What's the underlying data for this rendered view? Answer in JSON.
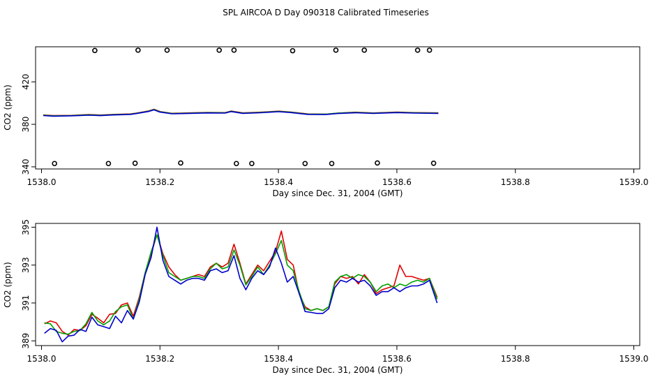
{
  "title": "SPL AIRCOA D  Day 090318  Calibrated Timeseries",
  "colors": {
    "red": "#e00000",
    "green": "#00a000",
    "blue": "#0000cc",
    "axis": "#000000"
  },
  "chart_data": [
    {
      "type": "line",
      "name": "upper-panel",
      "xlabel": "Day since Dec. 31, 2004 (GMT)",
      "ylabel": "CO2 (ppm)",
      "xlim": [
        1537.99,
        1539.01
      ],
      "ylim": [
        338,
        453
      ],
      "xticks": [
        {
          "v": 1538.0,
          "label": "1538.0"
        },
        {
          "v": 1538.2,
          "label": "1538.2"
        },
        {
          "v": 1538.4,
          "label": "1538.4"
        },
        {
          "v": 1538.6,
          "label": "1538.6"
        },
        {
          "v": 1538.8,
          "label": "1538.8"
        },
        {
          "v": 1539.0,
          "label": "1539.0"
        }
      ],
      "yticks": [
        {
          "v": 340,
          "label": "340"
        },
        {
          "v": 380,
          "label": "380"
        },
        {
          "v": 420,
          "label": "420"
        }
      ],
      "series": [
        {
          "name": "red",
          "color": "#e00000",
          "x": [
            1538.003,
            1538.02,
            1538.05,
            1538.08,
            1538.1,
            1538.12,
            1538.15,
            1538.16,
            1538.18,
            1538.19,
            1538.2,
            1538.22,
            1538.25,
            1538.28,
            1538.31,
            1538.32,
            1538.34,
            1538.37,
            1538.4,
            1538.42,
            1538.45,
            1538.48,
            1538.5,
            1538.53,
            1538.56,
            1538.6,
            1538.63,
            1538.67
          ],
          "y": [
            388.8,
            388.2,
            388.4,
            389.2,
            388.7,
            389.3,
            389.8,
            390.6,
            392.5,
            394.2,
            392.0,
            390.4,
            390.8,
            391.2,
            391.0,
            392.5,
            390.8,
            391.4,
            392.4,
            391.6,
            389.8,
            389.6,
            390.6,
            391.4,
            390.7,
            391.5,
            391.0,
            390.8
          ]
        },
        {
          "name": "green",
          "color": "#00a000",
          "x": [
            1538.003,
            1538.02,
            1538.05,
            1538.08,
            1538.1,
            1538.12,
            1538.15,
            1538.16,
            1538.18,
            1538.19,
            1538.2,
            1538.22,
            1538.25,
            1538.28,
            1538.31,
            1538.32,
            1538.34,
            1538.37,
            1538.4,
            1538.42,
            1538.45,
            1538.48,
            1538.5,
            1538.53,
            1538.56,
            1538.6,
            1538.63,
            1538.67
          ],
          "y": [
            388.6,
            388.0,
            388.3,
            389.0,
            388.5,
            389.1,
            389.6,
            390.4,
            392.3,
            393.9,
            391.8,
            390.2,
            390.6,
            391.0,
            390.9,
            392.3,
            390.6,
            391.2,
            392.2,
            391.4,
            389.6,
            389.5,
            390.5,
            391.2,
            390.6,
            391.3,
            390.9,
            390.6
          ]
        },
        {
          "name": "blue",
          "color": "#0000cc",
          "x": [
            1538.003,
            1538.02,
            1538.05,
            1538.08,
            1538.1,
            1538.12,
            1538.15,
            1538.16,
            1538.18,
            1538.19,
            1538.2,
            1538.22,
            1538.25,
            1538.28,
            1538.31,
            1538.32,
            1538.34,
            1538.37,
            1538.4,
            1538.42,
            1538.45,
            1538.48,
            1538.5,
            1538.53,
            1538.56,
            1538.6,
            1538.63,
            1538.67
          ],
          "y": [
            388.3,
            387.7,
            388.0,
            388.6,
            388.2,
            388.8,
            389.3,
            390.1,
            392.0,
            393.6,
            391.5,
            389.9,
            390.3,
            390.7,
            390.6,
            392.0,
            390.3,
            390.9,
            391.9,
            391.1,
            389.3,
            389.2,
            390.2,
            390.9,
            390.3,
            391.0,
            390.6,
            390.3
          ]
        }
      ],
      "markers": {
        "style": "open-circle",
        "x": [
          1538.09,
          1538.163,
          1538.212,
          1538.3,
          1538.325,
          1538.424,
          1538.497,
          1538.545,
          1538.635,
          1538.655,
          1538.022,
          1538.113,
          1538.158,
          1538.235,
          1538.329,
          1538.355,
          1538.445,
          1538.49,
          1538.567,
          1538.662
        ],
        "y": [
          449.5,
          449.8,
          449.8,
          449.8,
          449.8,
          449.3,
          449.8,
          449.8,
          449.8,
          449.8,
          343.1,
          343.1,
          343.4,
          343.6,
          343.1,
          343.1,
          343.1,
          343.1,
          343.6,
          343.4
        ]
      }
    },
    {
      "type": "line",
      "name": "lower-panel",
      "xlabel": "Day since Dec. 31, 2004 (GMT)",
      "ylabel": "CO2 (ppm)",
      "xlim": [
        1537.99,
        1539.01
      ],
      "ylim": [
        388.75,
        395.2
      ],
      "xticks": [
        {
          "v": 1538.0,
          "label": "1538.0"
        },
        {
          "v": 1538.2,
          "label": "1538.2"
        },
        {
          "v": 1538.4,
          "label": "1538.4"
        },
        {
          "v": 1538.6,
          "label": "1538.6"
        },
        {
          "v": 1538.8,
          "label": "1538.8"
        },
        {
          "v": 1539.0,
          "label": "1539.0"
        }
      ],
      "yticks": [
        {
          "v": 389,
          "label": "389"
        },
        {
          "v": 391,
          "label": "391"
        },
        {
          "v": 393,
          "label": "393"
        },
        {
          "v": 395,
          "label": "395"
        }
      ],
      "series": [
        {
          "name": "red",
          "color": "#e00000",
          "x": [
            1538.005,
            1538.015,
            1538.025,
            1538.035,
            1538.045,
            1538.055,
            1538.065,
            1538.075,
            1538.085,
            1538.095,
            1538.105,
            1538.115,
            1538.125,
            1538.135,
            1538.145,
            1538.155,
            1538.165,
            1538.175,
            1538.185,
            1538.195,
            1538.205,
            1538.215,
            1538.225,
            1538.235,
            1538.245,
            1538.255,
            1538.265,
            1538.275,
            1538.285,
            1538.295,
            1538.305,
            1538.315,
            1538.325,
            1538.335,
            1538.345,
            1538.355,
            1538.365,
            1538.375,
            1538.385,
            1538.395,
            1538.405,
            1538.415,
            1538.425,
            1538.435,
            1538.445,
            1538.455,
            1538.465,
            1538.475,
            1538.485,
            1538.495,
            1538.505,
            1538.515,
            1538.525,
            1538.535,
            1538.545,
            1538.555,
            1538.565,
            1538.575,
            1538.585,
            1538.595,
            1538.605,
            1538.615,
            1538.625,
            1538.635,
            1538.645,
            1538.655,
            1538.668
          ],
          "y": [
            389.9,
            390.05,
            389.95,
            389.5,
            389.3,
            389.6,
            389.55,
            389.8,
            390.4,
            390.2,
            389.95,
            390.4,
            390.45,
            390.9,
            391.0,
            390.3,
            391.3,
            392.6,
            393.6,
            394.6,
            393.6,
            392.9,
            392.5,
            392.2,
            392.3,
            392.4,
            392.5,
            392.4,
            392.9,
            393.1,
            392.9,
            393.1,
            394.1,
            393.1,
            392.0,
            392.5,
            393.0,
            392.7,
            393.2,
            393.7,
            394.8,
            393.3,
            393.0,
            391.5,
            390.8,
            390.6,
            390.7,
            390.6,
            390.8,
            392.0,
            392.4,
            392.3,
            392.4,
            392.0,
            392.5,
            392.1,
            391.5,
            391.7,
            391.8,
            391.9,
            393.0,
            392.4,
            392.4,
            392.3,
            392.2,
            392.3,
            391.3
          ]
        },
        {
          "name": "green",
          "color": "#00a000",
          "x": [
            1538.005,
            1538.015,
            1538.025,
            1538.035,
            1538.045,
            1538.055,
            1538.065,
            1538.075,
            1538.085,
            1538.095,
            1538.105,
            1538.115,
            1538.125,
            1538.135,
            1538.145,
            1538.155,
            1538.165,
            1538.175,
            1538.185,
            1538.195,
            1538.205,
            1538.215,
            1538.225,
            1538.235,
            1538.245,
            1538.255,
            1538.265,
            1538.275,
            1538.285,
            1538.295,
            1538.305,
            1538.315,
            1538.325,
            1538.335,
            1538.345,
            1538.355,
            1538.365,
            1538.375,
            1538.385,
            1538.395,
            1538.405,
            1538.415,
            1538.425,
            1538.435,
            1538.445,
            1538.455,
            1538.465,
            1538.475,
            1538.485,
            1538.495,
            1538.505,
            1538.515,
            1538.525,
            1538.535,
            1538.545,
            1538.555,
            1538.565,
            1538.575,
            1538.585,
            1538.595,
            1538.605,
            1538.615,
            1538.625,
            1538.635,
            1538.645,
            1538.655,
            1538.668
          ],
          "y": [
            389.95,
            389.9,
            389.5,
            389.4,
            389.35,
            389.5,
            389.55,
            389.9,
            390.5,
            390.05,
            389.85,
            390.05,
            390.55,
            390.8,
            390.9,
            390.15,
            391.2,
            392.6,
            393.7,
            394.6,
            393.5,
            392.6,
            392.4,
            392.2,
            392.3,
            392.4,
            392.4,
            392.3,
            392.8,
            393.1,
            392.8,
            392.9,
            393.8,
            393.0,
            391.95,
            392.4,
            392.9,
            392.5,
            393.0,
            393.6,
            394.3,
            393.0,
            392.7,
            391.6,
            390.7,
            390.6,
            390.7,
            390.6,
            390.8,
            392.1,
            392.4,
            392.5,
            392.3,
            392.5,
            392.4,
            392.1,
            391.6,
            391.9,
            392.0,
            391.8,
            392.0,
            391.9,
            392.1,
            392.2,
            392.1,
            392.3,
            391.2
          ]
        },
        {
          "name": "blue",
          "color": "#0000cc",
          "x": [
            1538.005,
            1538.015,
            1538.025,
            1538.035,
            1538.045,
            1538.055,
            1538.065,
            1538.075,
            1538.085,
            1538.095,
            1538.105,
            1538.115,
            1538.125,
            1538.135,
            1538.145,
            1538.155,
            1538.165,
            1538.175,
            1538.185,
            1538.195,
            1538.205,
            1538.215,
            1538.225,
            1538.235,
            1538.245,
            1538.255,
            1538.265,
            1538.275,
            1538.285,
            1538.295,
            1538.305,
            1538.315,
            1538.325,
            1538.335,
            1538.345,
            1538.355,
            1538.365,
            1538.375,
            1538.385,
            1538.395,
            1538.405,
            1538.415,
            1538.425,
            1538.435,
            1538.445,
            1538.455,
            1538.465,
            1538.475,
            1538.485,
            1538.495,
            1538.505,
            1538.515,
            1538.525,
            1538.535,
            1538.545,
            1538.555,
            1538.565,
            1538.575,
            1538.585,
            1538.595,
            1538.605,
            1538.615,
            1538.625,
            1538.635,
            1538.645,
            1538.655,
            1538.668
          ],
          "y": [
            389.4,
            389.65,
            389.55,
            388.95,
            389.25,
            389.3,
            389.6,
            389.5,
            390.25,
            389.85,
            389.75,
            389.65,
            390.3,
            389.95,
            390.6,
            390.15,
            391.05,
            392.5,
            393.4,
            395.0,
            393.25,
            392.4,
            392.2,
            392.0,
            392.2,
            392.3,
            392.3,
            392.2,
            392.7,
            392.8,
            392.6,
            392.7,
            393.5,
            392.3,
            391.7,
            392.3,
            392.7,
            392.5,
            392.9,
            393.9,
            393.1,
            392.1,
            392.4,
            391.5,
            390.55,
            390.5,
            390.45,
            390.45,
            390.7,
            391.8,
            392.2,
            392.1,
            392.3,
            392.1,
            392.2,
            391.9,
            391.4,
            391.6,
            391.6,
            391.8,
            391.6,
            391.8,
            391.9,
            391.9,
            392.0,
            392.2,
            391.0
          ]
        }
      ]
    }
  ]
}
